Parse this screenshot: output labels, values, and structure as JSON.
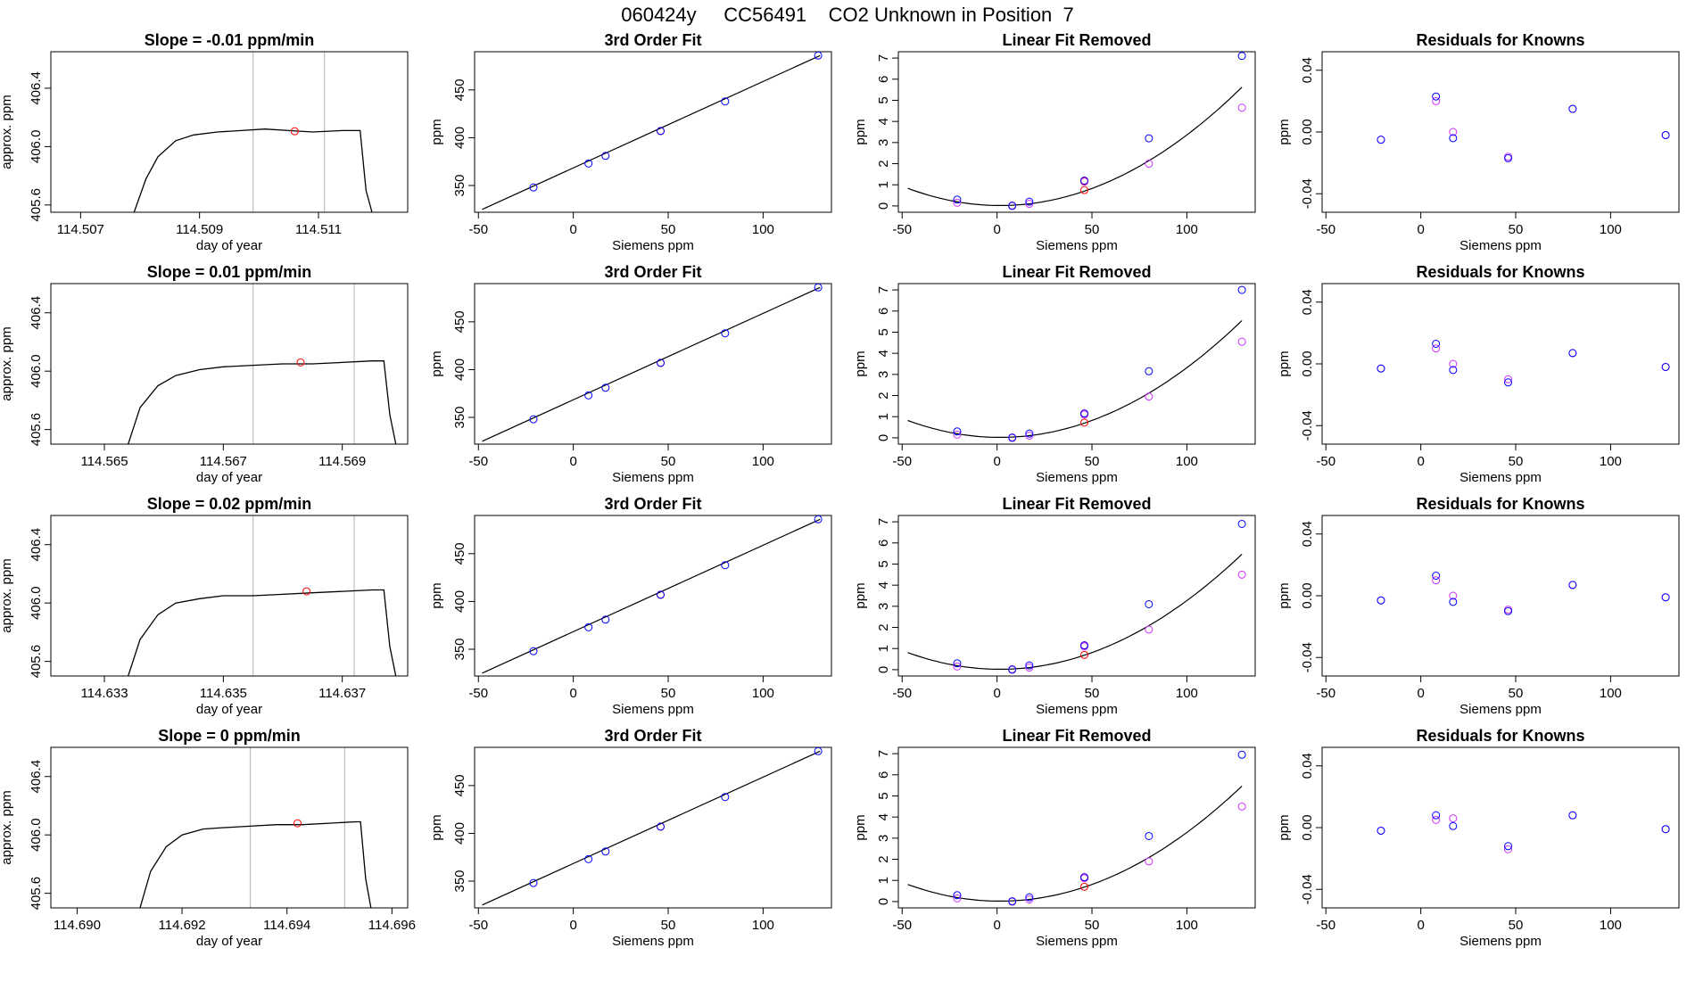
{
  "header": {
    "title": "060424y     CC56491    CO2 Unknown in Position  7"
  },
  "colors": {
    "line": "#000000",
    "known_point": "#0000ff",
    "unknown_point": "#ff0000",
    "alt_point": "#cc33ff",
    "gridline": "#bebebe"
  },
  "chart_data": [
    {
      "type": "line",
      "title": "Slope =  -0.01  ppm/min",
      "xlabel": "day of year",
      "ylabel": "approx. ppm",
      "xlim": [
        114.5065,
        114.5125
      ],
      "ylim": [
        405.55,
        406.65
      ],
      "xticks": [
        "114.507",
        "114.509",
        "114.511"
      ],
      "yticks": [
        "405.6",
        "406.0",
        "406.4"
      ],
      "vlines": [
        114.5099,
        114.5111
      ],
      "marker": {
        "x": 114.5106,
        "y": 406.105
      },
      "series_points": [
        [
          114.5079,
          405.55
        ],
        [
          114.5081,
          405.78
        ],
        [
          114.5083,
          405.93
        ],
        [
          114.5086,
          406.04
        ],
        [
          114.5089,
          406.08
        ],
        [
          114.5093,
          406.1
        ],
        [
          114.5097,
          406.11
        ],
        [
          114.5101,
          406.12
        ],
        [
          114.5105,
          406.11
        ],
        [
          114.5109,
          406.1
        ],
        [
          114.5114,
          406.11
        ],
        [
          114.5117,
          406.11
        ],
        [
          114.5118,
          405.7
        ],
        [
          114.5119,
          405.55
        ]
      ]
    },
    {
      "type": "scatter",
      "title": "3rd Order Fit",
      "xlabel": "Siemens ppm",
      "ylabel": "ppm",
      "xlim": [
        -52,
        136
      ],
      "ylim": [
        322,
        490
      ],
      "xticks": [
        "-50",
        "0",
        "50",
        "100"
      ],
      "yticks": [
        "350",
        "400",
        "450"
      ],
      "fit_line": [
        [
          -48,
          325
        ],
        [
          130,
          486
        ]
      ],
      "knowns": [
        [
          -21,
          348
        ],
        [
          8,
          373
        ],
        [
          17,
          381
        ],
        [
          46,
          407
        ],
        [
          80,
          438
        ],
        [
          129,
          486
        ]
      ],
      "unknowns": [
        [
          46,
          407
        ]
      ]
    },
    {
      "type": "scatter",
      "title": "Linear Fit Removed",
      "xlabel": "Siemens ppm",
      "ylabel": "ppm",
      "xlim": [
        -52,
        136
      ],
      "ylim": [
        -0.3,
        7.3
      ],
      "xticks": [
        "-50",
        "0",
        "50",
        "100"
      ],
      "yticks": [
        "0",
        "1",
        "2",
        "3",
        "4",
        "5",
        "6",
        "7"
      ],
      "curve": {
        "a": 0.000345,
        "b": -0.0011,
        "c": 0.02,
        "x0": -47,
        "x1": 129
      },
      "knowns": [
        [
          -21,
          0.3
        ],
        [
          8,
          0.0
        ],
        [
          17,
          0.2
        ],
        [
          46,
          1.2
        ],
        [
          80,
          3.2
        ],
        [
          129,
          7.1
        ]
      ],
      "alt": [
        [
          -21,
          0.15
        ],
        [
          8,
          0.02
        ],
        [
          17,
          0.1
        ],
        [
          46,
          1.15
        ],
        [
          80,
          2.0
        ],
        [
          129,
          4.65
        ]
      ],
      "unknowns": [
        [
          46,
          0.75
        ],
        [
          46,
          1.18
        ]
      ]
    },
    {
      "type": "scatter",
      "title": "Residuals for Knowns",
      "xlabel": "Siemens ppm",
      "ylabel": "ppm",
      "xlim": [
        -52,
        136
      ],
      "ylim": [
        -0.052,
        0.052
      ],
      "xticks": [
        "-50",
        "0",
        "50",
        "100"
      ],
      "yticks": [
        "-0.04",
        "0.00",
        "0.04"
      ],
      "knowns": [
        [
          -21,
          -0.005
        ],
        [
          8,
          0.023
        ],
        [
          17,
          -0.004
        ],
        [
          46,
          -0.017
        ],
        [
          80,
          0.015
        ],
        [
          129,
          -0.002
        ]
      ],
      "alt": [
        [
          -21,
          -0.005
        ],
        [
          8,
          0.02
        ],
        [
          17,
          0.0
        ],
        [
          46,
          -0.016
        ],
        [
          80,
          0.015
        ],
        [
          129,
          -0.002
        ]
      ]
    },
    {
      "type": "line",
      "title": "Slope =  0.01  ppm/min",
      "xlabel": "day of year",
      "ylabel": "approx. ppm",
      "xlim": [
        114.5641,
        114.5701
      ],
      "ylim": [
        405.5,
        406.6
      ],
      "xticks": [
        "114.565",
        "114.567",
        "114.569"
      ],
      "yticks": [
        "405.6",
        "406.0",
        "406.4"
      ],
      "vlines": [
        114.5675,
        114.5692
      ],
      "marker": {
        "x": 114.5683,
        "y": 406.06
      },
      "series_points": [
        [
          114.5654,
          405.5
        ],
        [
          114.5656,
          405.75
        ],
        [
          114.5659,
          405.9
        ],
        [
          114.5662,
          405.97
        ],
        [
          114.5666,
          406.01
        ],
        [
          114.567,
          406.03
        ],
        [
          114.5675,
          406.04
        ],
        [
          114.568,
          406.05
        ],
        [
          114.5685,
          406.05
        ],
        [
          114.569,
          406.06
        ],
        [
          114.5695,
          406.07
        ],
        [
          114.5697,
          406.07
        ],
        [
          114.5698,
          405.7
        ],
        [
          114.5699,
          405.5
        ]
      ]
    },
    {
      "type": "scatter",
      "title": "3rd Order Fit",
      "xlabel": "Siemens ppm",
      "ylabel": "ppm",
      "xlim": [
        -52,
        136
      ],
      "ylim": [
        322,
        490
      ],
      "xticks": [
        "-50",
        "0",
        "50",
        "100"
      ],
      "yticks": [
        "350",
        "400",
        "450"
      ],
      "fit_line": [
        [
          -48,
          325
        ],
        [
          130,
          486
        ]
      ],
      "knowns": [
        [
          -21,
          348
        ],
        [
          8,
          373
        ],
        [
          17,
          381
        ],
        [
          46,
          407
        ],
        [
          80,
          438
        ],
        [
          129,
          486
        ]
      ],
      "unknowns": [
        [
          46,
          407
        ]
      ]
    },
    {
      "type": "scatter",
      "title": "Linear Fit Removed",
      "xlabel": "Siemens ppm",
      "ylabel": "ppm",
      "xlim": [
        -52,
        136
      ],
      "ylim": [
        -0.3,
        7.3
      ],
      "xticks": [
        "-50",
        "0",
        "50",
        "100"
      ],
      "yticks": [
        "0",
        "1",
        "2",
        "3",
        "4",
        "5",
        "6",
        "7"
      ],
      "curve": {
        "a": 0.00034,
        "b": -0.001,
        "c": 0.02,
        "x0": -47,
        "x1": 129
      },
      "knowns": [
        [
          -21,
          0.3
        ],
        [
          8,
          0.0
        ],
        [
          17,
          0.2
        ],
        [
          46,
          1.15
        ],
        [
          80,
          3.15
        ],
        [
          129,
          7.0
        ]
      ],
      "alt": [
        [
          -21,
          0.15
        ],
        [
          8,
          0.02
        ],
        [
          17,
          0.1
        ],
        [
          46,
          1.1
        ],
        [
          80,
          1.95
        ],
        [
          129,
          4.55
        ]
      ],
      "unknowns": [
        [
          46,
          0.72
        ],
        [
          46,
          1.15
        ]
      ]
    },
    {
      "type": "scatter",
      "title": "Residuals for Knowns",
      "xlabel": "Siemens ppm",
      "ylabel": "ppm",
      "xlim": [
        -52,
        136
      ],
      "ylim": [
        -0.052,
        0.052
      ],
      "xticks": [
        "-50",
        "0",
        "50",
        "100"
      ],
      "yticks": [
        "-0.04",
        "0.00",
        "0.04"
      ],
      "knowns": [
        [
          -21,
          -0.003
        ],
        [
          8,
          0.013
        ],
        [
          17,
          -0.004
        ],
        [
          46,
          -0.012
        ],
        [
          80,
          0.007
        ],
        [
          129,
          -0.002
        ]
      ],
      "alt": [
        [
          -21,
          -0.003
        ],
        [
          8,
          0.01
        ],
        [
          17,
          0.0
        ],
        [
          46,
          -0.01
        ],
        [
          80,
          0.007
        ],
        [
          129,
          -0.002
        ]
      ]
    },
    {
      "type": "line",
      "title": "Slope =  0.02  ppm/min",
      "xlabel": "day of year",
      "ylabel": "approx. ppm",
      "xlim": [
        114.6321,
        114.6381
      ],
      "ylim": [
        405.5,
        406.6
      ],
      "xticks": [
        "114.633",
        "114.635",
        "114.637"
      ],
      "yticks": [
        "405.6",
        "406.0",
        "406.4"
      ],
      "vlines": [
        114.6355,
        114.6372
      ],
      "marker": {
        "x": 114.6364,
        "y": 406.08
      },
      "series_points": [
        [
          114.6334,
          405.5
        ],
        [
          114.6336,
          405.75
        ],
        [
          114.6339,
          405.92
        ],
        [
          114.6342,
          406.0
        ],
        [
          114.6346,
          406.03
        ],
        [
          114.635,
          406.05
        ],
        [
          114.6355,
          406.05
        ],
        [
          114.636,
          406.06
        ],
        [
          114.6365,
          406.07
        ],
        [
          114.637,
          406.08
        ],
        [
          114.6375,
          406.09
        ],
        [
          114.6377,
          406.09
        ],
        [
          114.6378,
          405.7
        ],
        [
          114.6379,
          405.5
        ]
      ]
    },
    {
      "type": "scatter",
      "title": "3rd Order Fit",
      "xlabel": "Siemens ppm",
      "ylabel": "ppm",
      "xlim": [
        -52,
        136
      ],
      "ylim": [
        322,
        490
      ],
      "xticks": [
        "-50",
        "0",
        "50",
        "100"
      ],
      "yticks": [
        "350",
        "400",
        "450"
      ],
      "fit_line": [
        [
          -48,
          325
        ],
        [
          130,
          486
        ]
      ],
      "knowns": [
        [
          -21,
          348
        ],
        [
          8,
          373
        ],
        [
          17,
          381
        ],
        [
          46,
          407
        ],
        [
          80,
          438
        ],
        [
          129,
          486
        ]
      ],
      "unknowns": [
        [
          46,
          407
        ]
      ]
    },
    {
      "type": "scatter",
      "title": "Linear Fit Removed",
      "xlabel": "Siemens ppm",
      "ylabel": "ppm",
      "xlim": [
        -52,
        136
      ],
      "ylim": [
        -0.3,
        7.3
      ],
      "xticks": [
        "-50",
        "0",
        "50",
        "100"
      ],
      "yticks": [
        "0",
        "1",
        "2",
        "3",
        "4",
        "5",
        "6",
        "7"
      ],
      "curve": {
        "a": 0.000335,
        "b": -0.001,
        "c": 0.02,
        "x0": -47,
        "x1": 129
      },
      "knowns": [
        [
          -21,
          0.3
        ],
        [
          8,
          0.0
        ],
        [
          17,
          0.2
        ],
        [
          46,
          1.15
        ],
        [
          80,
          3.1
        ],
        [
          129,
          6.9
        ]
      ],
      "alt": [
        [
          -21,
          0.15
        ],
        [
          8,
          0.02
        ],
        [
          17,
          0.1
        ],
        [
          46,
          1.1
        ],
        [
          80,
          1.9
        ],
        [
          129,
          4.5
        ]
      ],
      "unknowns": [
        [
          46,
          0.7
        ],
        [
          46,
          1.15
        ]
      ]
    },
    {
      "type": "scatter",
      "title": "Residuals for Knowns",
      "xlabel": "Siemens ppm",
      "ylabel": "ppm",
      "xlim": [
        -52,
        136
      ],
      "ylim": [
        -0.052,
        0.052
      ],
      "xticks": [
        "-50",
        "0",
        "50",
        "100"
      ],
      "yticks": [
        "-0.04",
        "0.00",
        "0.04"
      ],
      "knowns": [
        [
          -21,
          -0.003
        ],
        [
          8,
          0.013
        ],
        [
          17,
          -0.004
        ],
        [
          46,
          -0.01
        ],
        [
          80,
          0.007
        ],
        [
          129,
          -0.001
        ]
      ],
      "alt": [
        [
          -21,
          -0.003
        ],
        [
          8,
          0.01
        ],
        [
          17,
          0.0
        ],
        [
          46,
          -0.009
        ],
        [
          80,
          0.007
        ],
        [
          129,
          -0.001
        ]
      ]
    },
    {
      "type": "line",
      "title": "Slope =  0  ppm/min",
      "xlabel": "day of year",
      "ylabel": "approx. ppm",
      "xlim": [
        114.6895,
        114.6963
      ],
      "ylim": [
        405.5,
        406.6
      ],
      "xticks": [
        "114.690",
        "114.692",
        "114.694",
        "114.696"
      ],
      "yticks": [
        "405.6",
        "406.0",
        "406.4"
      ],
      "vlines": [
        114.6933,
        114.6951
      ],
      "marker": {
        "x": 114.6942,
        "y": 406.08
      },
      "series_points": [
        [
          114.6912,
          405.5
        ],
        [
          114.6914,
          405.75
        ],
        [
          114.6917,
          405.92
        ],
        [
          114.692,
          406.0
        ],
        [
          114.6924,
          406.04
        ],
        [
          114.6928,
          406.05
        ],
        [
          114.6933,
          406.06
        ],
        [
          114.6938,
          406.07
        ],
        [
          114.6943,
          406.07
        ],
        [
          114.6948,
          406.08
        ],
        [
          114.6953,
          406.09
        ],
        [
          114.6954,
          406.09
        ],
        [
          114.6955,
          405.7
        ],
        [
          114.6956,
          405.5
        ]
      ]
    },
    {
      "type": "scatter",
      "title": "3rd Order Fit",
      "xlabel": "Siemens ppm",
      "ylabel": "ppm",
      "xlim": [
        -52,
        136
      ],
      "ylim": [
        322,
        490
      ],
      "xticks": [
        "-50",
        "0",
        "50",
        "100"
      ],
      "yticks": [
        "350",
        "400",
        "450"
      ],
      "fit_line": [
        [
          -48,
          325
        ],
        [
          130,
          486
        ]
      ],
      "knowns": [
        [
          -21,
          348
        ],
        [
          8,
          373
        ],
        [
          17,
          381
        ],
        [
          46,
          407
        ],
        [
          80,
          438
        ],
        [
          129,
          486
        ]
      ],
      "unknowns": [
        [
          46,
          407
        ]
      ]
    },
    {
      "type": "scatter",
      "title": "Linear Fit Removed",
      "xlabel": "Siemens ppm",
      "ylabel": "ppm",
      "xlim": [
        -52,
        136
      ],
      "ylim": [
        -0.3,
        7.3
      ],
      "xticks": [
        "-50",
        "0",
        "50",
        "100"
      ],
      "yticks": [
        "0",
        "1",
        "2",
        "3",
        "4",
        "5",
        "6",
        "7"
      ],
      "curve": {
        "a": 0.000335,
        "b": -0.001,
        "c": 0.02,
        "x0": -47,
        "x1": 129
      },
      "knowns": [
        [
          -21,
          0.3
        ],
        [
          8,
          0.0
        ],
        [
          17,
          0.2
        ],
        [
          46,
          1.15
        ],
        [
          80,
          3.1
        ],
        [
          129,
          6.95
        ]
      ],
      "alt": [
        [
          -21,
          0.15
        ],
        [
          8,
          0.02
        ],
        [
          17,
          0.1
        ],
        [
          46,
          1.1
        ],
        [
          80,
          1.9
        ],
        [
          129,
          4.5
        ]
      ],
      "unknowns": [
        [
          46,
          0.7
        ],
        [
          46,
          1.15
        ]
      ]
    },
    {
      "type": "scatter",
      "title": "Residuals for Knowns",
      "xlabel": "Siemens ppm",
      "ylabel": "ppm",
      "xlim": [
        -52,
        136
      ],
      "ylim": [
        -0.052,
        0.052
      ],
      "xticks": [
        "-50",
        "0",
        "50",
        "100"
      ],
      "yticks": [
        "-0.04",
        "0.00",
        "0.04"
      ],
      "knowns": [
        [
          -21,
          -0.002
        ],
        [
          8,
          0.008
        ],
        [
          17,
          0.001
        ],
        [
          46,
          -0.012
        ],
        [
          80,
          0.008
        ],
        [
          129,
          -0.001
        ]
      ],
      "alt": [
        [
          -21,
          -0.002
        ],
        [
          8,
          0.005
        ],
        [
          17,
          0.006
        ],
        [
          46,
          -0.014
        ],
        [
          80,
          0.008
        ],
        [
          129,
          -0.001
        ]
      ]
    }
  ]
}
